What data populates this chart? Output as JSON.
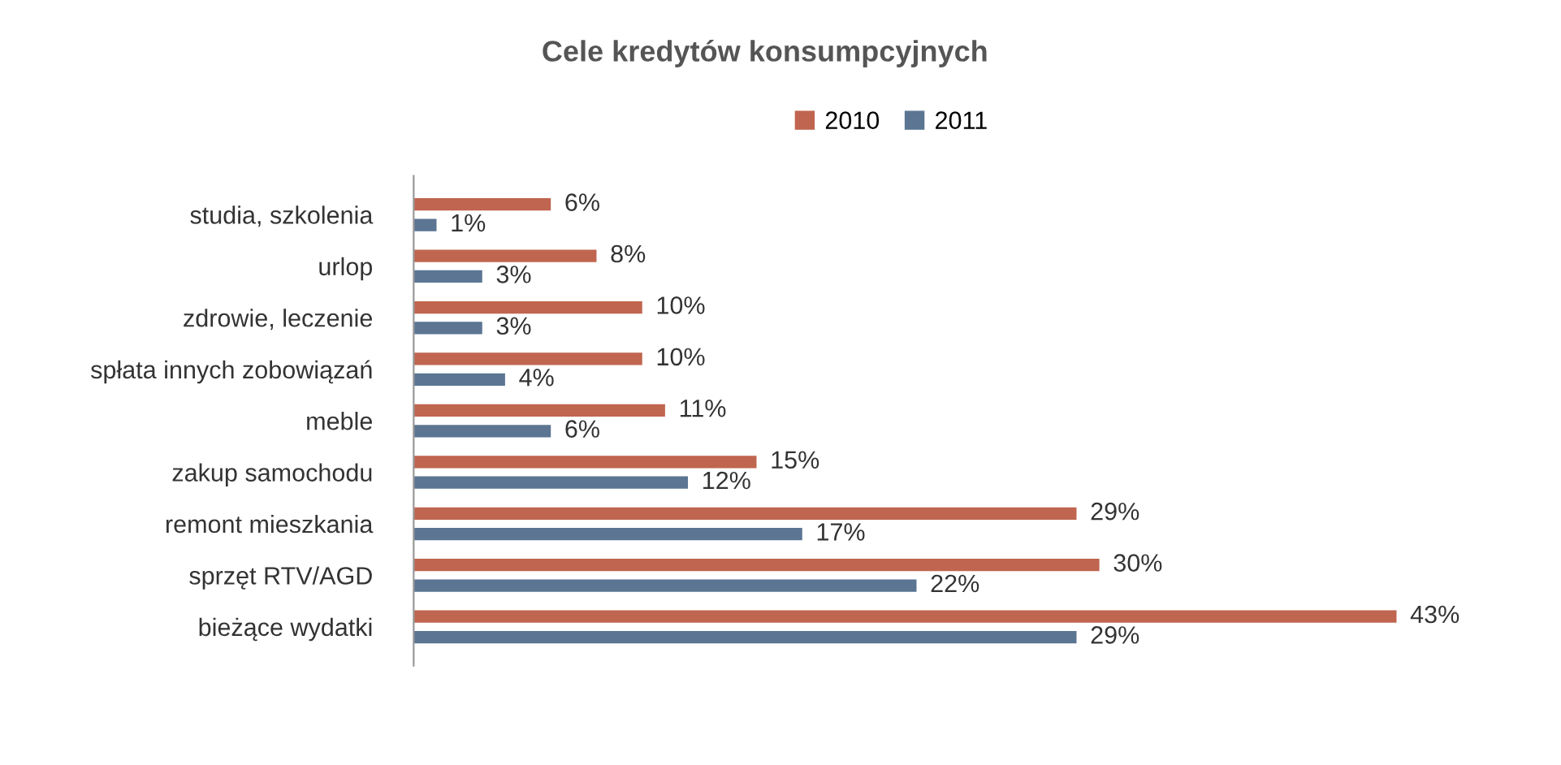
{
  "chart_data": {
    "type": "bar",
    "orientation": "horizontal",
    "title": "Cele kredytów konsumpcyjnych",
    "categories": [
      "studia, szkolenia",
      "urlop",
      "zdrowie, leczenie",
      "spłata innych zobowiązań",
      "meble",
      "zakup samochodu",
      "remont mieszkania",
      "sprzęt RTV/AGD",
      "bieżące wydatki"
    ],
    "series": [
      {
        "name": "2010",
        "color": "#c0654f",
        "values": [
          6,
          8,
          10,
          10,
          11,
          15,
          29,
          30,
          43
        ],
        "value_labels": [
          "6%",
          "8%",
          "10%",
          "10%",
          "11%",
          "15%",
          "29%",
          "30%",
          "43%"
        ]
      },
      {
        "name": "2011",
        "color": "#5b7593",
        "values": [
          1,
          3,
          3,
          4,
          6,
          12,
          17,
          22,
          29
        ],
        "value_labels": [
          "1%",
          "3%",
          "3%",
          "4%",
          "6%",
          "12%",
          "17%",
          "22%",
          "29%"
        ]
      }
    ],
    "legend": "top",
    "grid": false
  }
}
